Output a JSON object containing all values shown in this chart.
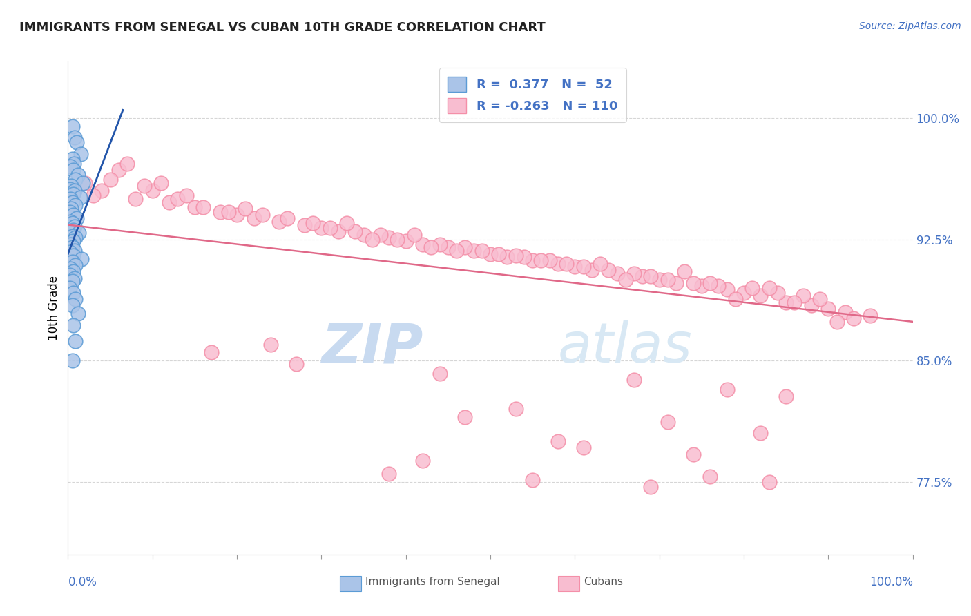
{
  "title": "IMMIGRANTS FROM SENEGAL VS CUBAN 10TH GRADE CORRELATION CHART",
  "source_text": "Source: ZipAtlas.com",
  "ylabel_label": "10th Grade",
  "y_tick_labels": [
    "77.5%",
    "85.0%",
    "92.5%",
    "100.0%"
  ],
  "y_tick_values": [
    0.775,
    0.85,
    0.925,
    1.0
  ],
  "x_range": [
    0.0,
    1.0
  ],
  "y_range": [
    0.73,
    1.035
  ],
  "blue_color": "#5b9bd5",
  "pink_color": "#f48fa8",
  "blue_fill": "#aac4e8",
  "pink_fill": "#f8bdd0",
  "trend_blue": "#2255aa",
  "trend_pink": "#e06888",
  "watermark_zip": "ZIP",
  "watermark_atlas": "atlas",
  "watermark_color": "#ccdcee",
  "grid_color": "#cccccc",
  "background_color": "#ffffff",
  "legend_text_color": "#4472c4",
  "blue_trend_x": [
    0.0,
    0.065
  ],
  "blue_trend_y": [
    0.916,
    1.005
  ],
  "pink_trend_x": [
    0.0,
    1.0
  ],
  "pink_trend_y": [
    0.934,
    0.874
  ],
  "blue_x": [
    0.005,
    0.008,
    0.01,
    0.015,
    0.005,
    0.007,
    0.003,
    0.006,
    0.012,
    0.009,
    0.018,
    0.004,
    0.002,
    0.008,
    0.006,
    0.014,
    0.003,
    0.005,
    0.009,
    0.004,
    0.002,
    0.006,
    0.01,
    0.003,
    0.005,
    0.008,
    0.006,
    0.013,
    0.005,
    0.009,
    0.006,
    0.003,
    0.005,
    0.008,
    0.002,
    0.006,
    0.016,
    0.005,
    0.009,
    0.003,
    0.006,
    0.002,
    0.008,
    0.005,
    0.002,
    0.006,
    0.009,
    0.005,
    0.012,
    0.006,
    0.009,
    0.005
  ],
  "blue_y": [
    0.995,
    0.988,
    0.985,
    0.978,
    0.975,
    0.972,
    0.97,
    0.968,
    0.965,
    0.962,
    0.96,
    0.958,
    0.956,
    0.955,
    0.953,
    0.951,
    0.95,
    0.948,
    0.946,
    0.944,
    0.942,
    0.94,
    0.938,
    0.936,
    0.935,
    0.933,
    0.931,
    0.929,
    0.927,
    0.926,
    0.924,
    0.922,
    0.92,
    0.918,
    0.917,
    0.915,
    0.913,
    0.911,
    0.909,
    0.907,
    0.905,
    0.903,
    0.901,
    0.899,
    0.895,
    0.892,
    0.888,
    0.884,
    0.879,
    0.872,
    0.862,
    0.85
  ],
  "pink_x": [
    0.02,
    0.04,
    0.06,
    0.03,
    0.08,
    0.05,
    0.1,
    0.12,
    0.07,
    0.15,
    0.09,
    0.18,
    0.13,
    0.2,
    0.11,
    0.22,
    0.16,
    0.25,
    0.19,
    0.28,
    0.23,
    0.3,
    0.26,
    0.32,
    0.29,
    0.35,
    0.31,
    0.38,
    0.34,
    0.4,
    0.37,
    0.42,
    0.39,
    0.45,
    0.41,
    0.48,
    0.44,
    0.5,
    0.47,
    0.52,
    0.49,
    0.55,
    0.51,
    0.58,
    0.54,
    0.6,
    0.57,
    0.62,
    0.59,
    0.65,
    0.61,
    0.68,
    0.64,
    0.7,
    0.67,
    0.72,
    0.69,
    0.75,
    0.71,
    0.78,
    0.74,
    0.8,
    0.77,
    0.82,
    0.79,
    0.85,
    0.81,
    0.88,
    0.84,
    0.9,
    0.87,
    0.92,
    0.89,
    0.95,
    0.93,
    0.14,
    0.21,
    0.33,
    0.43,
    0.53,
    0.63,
    0.73,
    0.83,
    0.36,
    0.46,
    0.56,
    0.66,
    0.76,
    0.86,
    0.24,
    0.17,
    0.27,
    0.44,
    0.67,
    0.78,
    0.85,
    0.53,
    0.47,
    0.71,
    0.82,
    0.58,
    0.61,
    0.74,
    0.42,
    0.91,
    0.38,
    0.55,
    0.69,
    0.83,
    0.76
  ],
  "pink_y": [
    0.96,
    0.955,
    0.968,
    0.952,
    0.95,
    0.962,
    0.955,
    0.948,
    0.972,
    0.945,
    0.958,
    0.942,
    0.95,
    0.94,
    0.96,
    0.938,
    0.945,
    0.936,
    0.942,
    0.934,
    0.94,
    0.932,
    0.938,
    0.93,
    0.935,
    0.928,
    0.932,
    0.926,
    0.93,
    0.924,
    0.928,
    0.922,
    0.925,
    0.92,
    0.928,
    0.918,
    0.922,
    0.916,
    0.92,
    0.914,
    0.918,
    0.912,
    0.916,
    0.91,
    0.914,
    0.908,
    0.912,
    0.906,
    0.91,
    0.904,
    0.908,
    0.902,
    0.906,
    0.9,
    0.904,
    0.898,
    0.902,
    0.896,
    0.9,
    0.894,
    0.898,
    0.892,
    0.896,
    0.89,
    0.888,
    0.886,
    0.895,
    0.884,
    0.892,
    0.882,
    0.89,
    0.88,
    0.888,
    0.878,
    0.876,
    0.952,
    0.944,
    0.935,
    0.92,
    0.915,
    0.91,
    0.905,
    0.895,
    0.925,
    0.918,
    0.912,
    0.9,
    0.898,
    0.886,
    0.86,
    0.855,
    0.848,
    0.842,
    0.838,
    0.832,
    0.828,
    0.82,
    0.815,
    0.812,
    0.805,
    0.8,
    0.796,
    0.792,
    0.788,
    0.874,
    0.78,
    0.776,
    0.772,
    0.775,
    0.778
  ]
}
